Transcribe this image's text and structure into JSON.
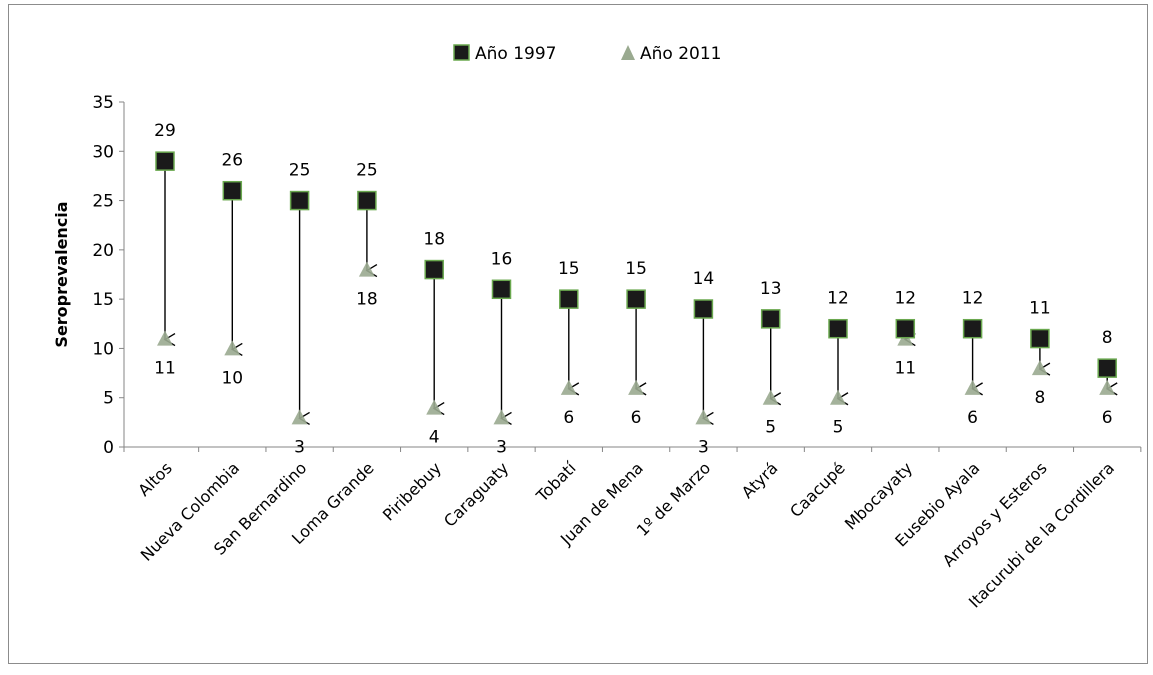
{
  "chart_data": {
    "type": "scatter",
    "ylabel": "Seroprevalencia",
    "ylim": [
      0,
      35
    ],
    "yticks": [
      0,
      5,
      10,
      15,
      20,
      25,
      30,
      35
    ],
    "grid": false,
    "legend_position": "top",
    "categories": [
      "Altos",
      "Nueva Colombia",
      "San Bernardino",
      "Loma Grande",
      "Piribebuy",
      "Caraguaty",
      "Tobatí",
      "Juan de Mena",
      "1º de Marzo",
      "Atyrá",
      "Caacupé",
      "Mbocayaty",
      "Eusebio Ayala",
      "Arroyos y Esteros",
      "Itacurubi de la Cordillera"
    ],
    "series": [
      {
        "name": "Año 1997",
        "marker": "square",
        "color": "#1a1a1a",
        "edge_color": "#6aa84f",
        "values": [
          29,
          26,
          25,
          25,
          18,
          16,
          15,
          15,
          14,
          13,
          12,
          12,
          12,
          11,
          8
        ]
      },
      {
        "name": "Año 2011",
        "marker": "triangle",
        "color": "#9aaa90",
        "values": [
          11,
          10,
          3,
          18,
          4,
          3,
          6,
          6,
          3,
          5,
          5,
          11,
          6,
          8,
          6
        ]
      }
    ],
    "annotations": "Arrows from 1997 value to 2011 value for each location"
  }
}
